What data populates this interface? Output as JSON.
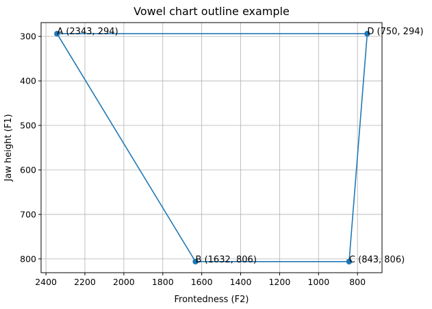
{
  "chart_data": {
    "type": "line",
    "title": "Vowel chart outline example",
    "xlabel": "Frontedness (F2)",
    "ylabel": "Jaw height (F1)",
    "x_inverted": true,
    "y_inverted": true,
    "xlim": [
      2425,
      674
    ],
    "ylim": [
      831,
      269
    ],
    "xticks": [
      2400,
      2200,
      2000,
      1800,
      1600,
      1400,
      1200,
      1000,
      800
    ],
    "yticks": [
      300,
      400,
      500,
      600,
      700,
      800
    ],
    "grid": true,
    "color": "#1f77b4",
    "points": [
      {
        "label": "A (2343, 294)",
        "x": 2343,
        "y": 294
      },
      {
        "label": "B (1632, 806)",
        "x": 1632,
        "y": 806
      },
      {
        "label": "C (843, 806)",
        "x": 843,
        "y": 806
      },
      {
        "label": "D (750, 294)",
        "x": 750,
        "y": 294
      }
    ],
    "path_order": [
      0,
      1,
      2,
      3,
      0
    ]
  }
}
